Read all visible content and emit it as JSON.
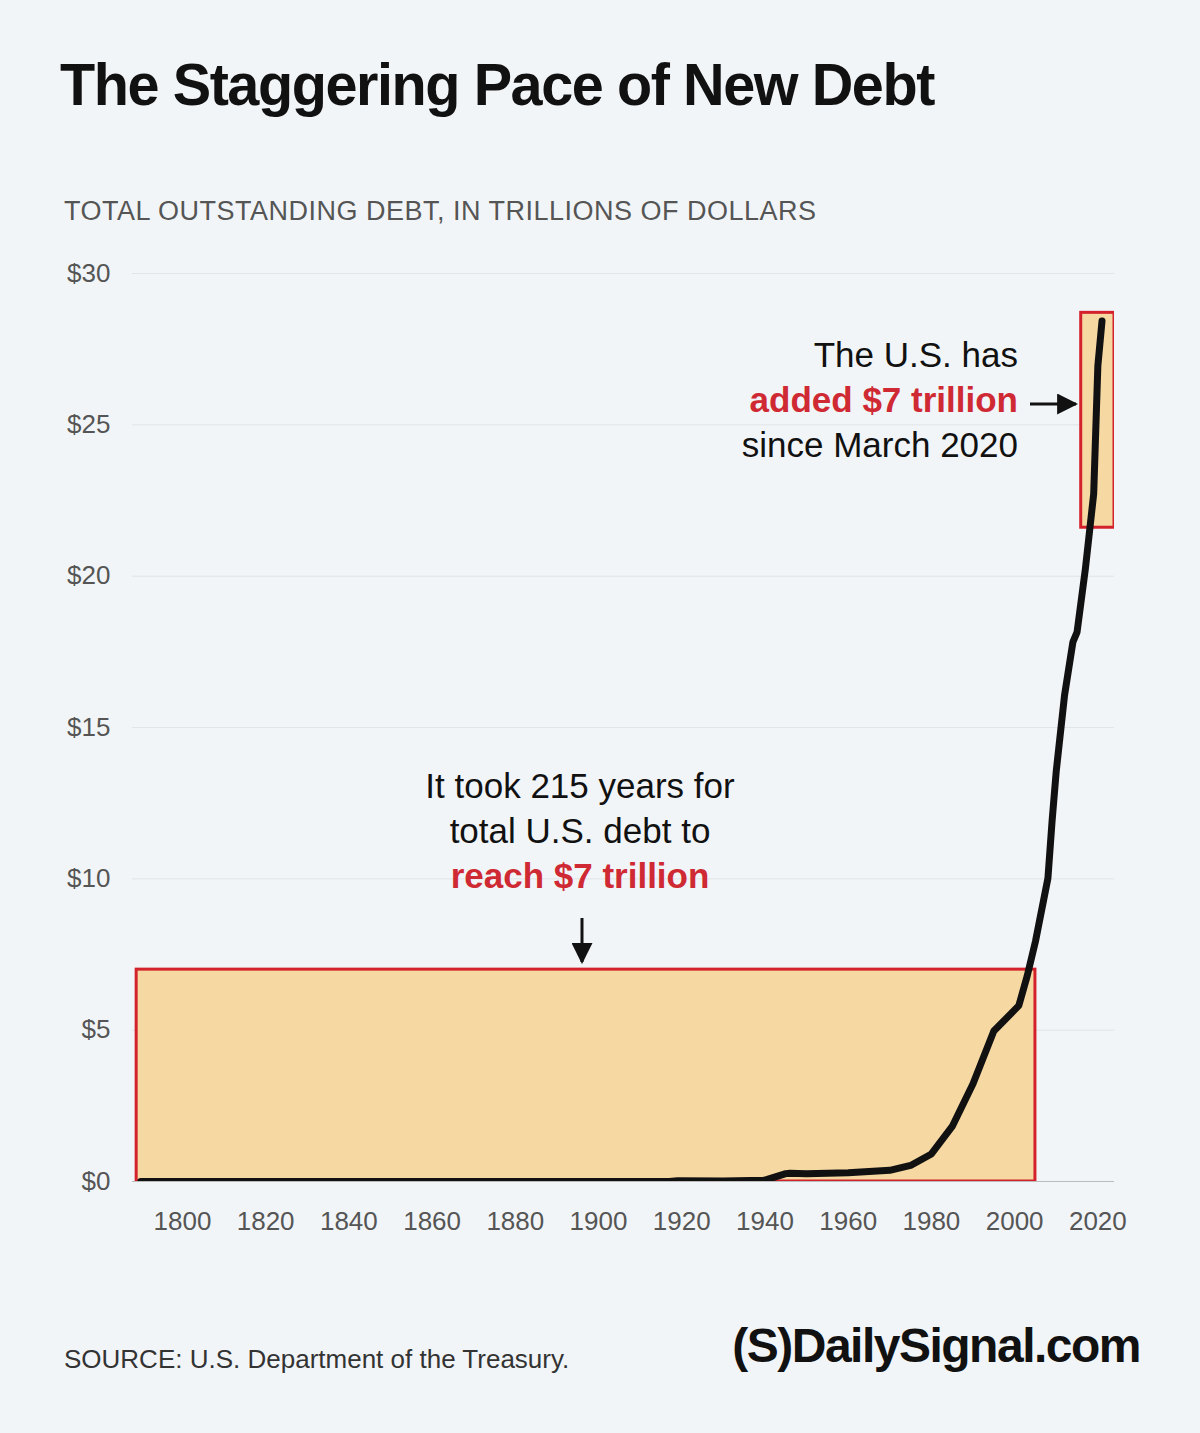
{
  "chart_data": {
    "type": "line",
    "title": "The Staggering Pace of New Debt",
    "subtitle": "TOTAL OUTSTANDING DEBT, IN TRILLIONS OF DOLLARS",
    "x": [
      1790,
      1800,
      1810,
      1820,
      1830,
      1840,
      1850,
      1860,
      1866,
      1870,
      1880,
      1890,
      1900,
      1910,
      1917,
      1919,
      1930,
      1940,
      1945,
      1946,
      1950,
      1960,
      1970,
      1975,
      1980,
      1985,
      1990,
      1995,
      2000,
      2001,
      2003,
      2005,
      2008,
      2009,
      2010,
      2012,
      2014,
      2015,
      2017,
      2019,
      2020,
      2021
    ],
    "values": [
      0.0001,
      0.0001,
      0.0001,
      0.0001,
      0,
      0,
      0,
      0.0001,
      0.003,
      0.002,
      0.002,
      0.001,
      0.001,
      0.001,
      0.003,
      0.025,
      0.016,
      0.043,
      0.26,
      0.27,
      0.26,
      0.29,
      0.37,
      0.53,
      0.91,
      1.82,
      3.23,
      4.97,
      5.67,
      5.81,
      6.78,
      7.93,
      10.02,
      11.91,
      13.56,
      16.07,
      17.82,
      18.15,
      20.24,
      22.72,
      26.95,
      28.43
    ],
    "color": "#111111",
    "xlim": [
      1788,
      2024
    ],
    "xticks": [
      1800,
      1820,
      1840,
      1860,
      1880,
      1900,
      1920,
      1940,
      1960,
      1980,
      2000,
      2020
    ],
    "ylim": [
      0,
      30
    ],
    "yticks": [
      {
        "value": 0,
        "label": "$0"
      },
      {
        "value": 5,
        "label": "$5"
      },
      {
        "value": 10,
        "label": "$10"
      },
      {
        "value": 15,
        "label": "$15"
      },
      {
        "value": 20,
        "label": "$20"
      },
      {
        "value": 25,
        "label": "$25"
      },
      {
        "value": 30,
        "label": "$30"
      }
    ],
    "grid": true,
    "highlights": [
      {
        "x": [
          1789,
          2005
        ],
        "y": [
          0,
          7
        ],
        "color": "#f6d8a2",
        "stroke": "#d3222b"
      },
      {
        "x": [
          2016,
          2024
        ],
        "y": [
          21.6,
          28.7
        ],
        "color": "#f6d8a2",
        "stroke": "#d3222b"
      }
    ],
    "annotations": [
      {
        "lines": [
          {
            "text": "It took 215 years for",
            "bold": false
          },
          {
            "text": "total U.S. debt to",
            "bold": false
          },
          {
            "text": "reach $7 trillion",
            "bold": true
          }
        ]
      },
      {
        "lines": [
          {
            "text": "The U.S. has",
            "bold": false
          },
          {
            "text": "added $7 trillion",
            "bold": true
          },
          {
            "text": "since March 2020",
            "bold": false
          }
        ]
      }
    ],
    "source": "SOURCE: U.S. Department of the Treasury.",
    "brand": "(S)DailySignal.com"
  }
}
